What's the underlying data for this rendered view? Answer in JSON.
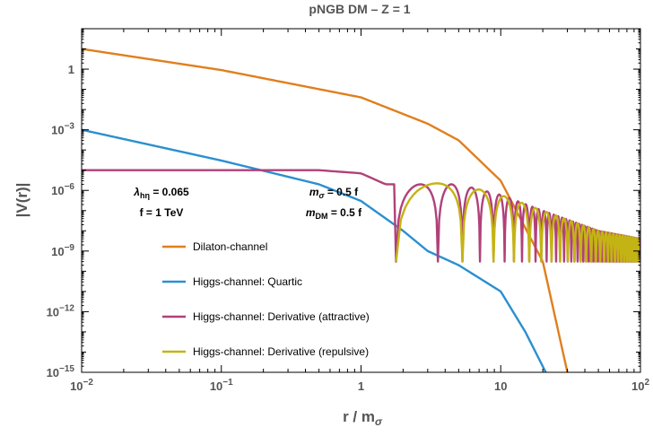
{
  "chart_data": {
    "type": "line",
    "title": "pNGB DM   –  Z = 1",
    "xscale": "log",
    "yscale": "log",
    "xlim": [
      0.01,
      100
    ],
    "ylim": [
      1e-15,
      100
    ],
    "xlabel": {
      "main": "r / m",
      "sub": "σ"
    },
    "ylabel": "|V(r)|",
    "xticks": [
      {
        "value": 0.01,
        "base": "10",
        "exp": "−2"
      },
      {
        "value": 0.1,
        "base": "10",
        "exp": "−1"
      },
      {
        "value": 1,
        "base": "1",
        "exp": ""
      },
      {
        "value": 10,
        "base": "10",
        "exp": ""
      },
      {
        "value": 100,
        "base": "10",
        "exp": "2"
      }
    ],
    "yticks": [
      {
        "value": 1e-15,
        "base": "10",
        "exp": "−15"
      },
      {
        "value": 1e-12,
        "base": "10",
        "exp": "−12"
      },
      {
        "value": 1e-09,
        "base": "10",
        "exp": "−9"
      },
      {
        "value": 1e-06,
        "base": "10",
        "exp": "−6"
      },
      {
        "value": 0.001,
        "base": "10",
        "exp": "−3"
      },
      {
        "value": 1,
        "base": "1",
        "exp": ""
      }
    ],
    "annotations": {
      "coupling": {
        "symbol": "λ",
        "sub": "hη",
        "rest": " = 0.065"
      },
      "scale": "f = 1 TeV",
      "msigma": {
        "symbol": "m",
        "sub": "σ",
        "rest": " = 0.5 f"
      },
      "mdm": {
        "symbol": "m",
        "sub": "DM",
        "rest": " = 0.5 f"
      }
    },
    "series": [
      {
        "name": "Dilaton-channel",
        "color": "#e07f1e",
        "points": [
          [
            0.01,
            10
          ],
          [
            0.1,
            0.9
          ],
          [
            1,
            0.04
          ],
          [
            3,
            0.002
          ],
          [
            5,
            0.0003
          ],
          [
            10,
            3e-06
          ],
          [
            20,
            3e-10
          ],
          [
            30,
            1e-15
          ]
        ]
      },
      {
        "name": "Higgs-channel: Quartic",
        "color": "#2b8fd0",
        "points": [
          [
            0.01,
            0.001
          ],
          [
            0.1,
            3e-05
          ],
          [
            0.5,
            2e-06
          ],
          [
            1,
            3e-07
          ],
          [
            2,
            1e-08
          ],
          [
            3,
            1e-09
          ],
          [
            5,
            2e-10
          ],
          [
            10,
            1e-11
          ],
          [
            15,
            1e-13
          ],
          [
            21,
            1e-15
          ]
        ]
      },
      {
        "name": "Higgs-channel: Derivative (attractive)",
        "color": "#b0417a",
        "envelope": [
          [
            0.01,
            1e-05
          ],
          [
            0.5,
            1e-05
          ],
          [
            1,
            7e-06
          ],
          [
            1.5,
            2e-06
          ],
          [
            2,
            2e-06
          ],
          [
            5,
            2e-06
          ],
          [
            10,
            6e-07
          ],
          [
            20,
            1e-07
          ],
          [
            50,
            1e-08
          ],
          [
            100,
            4e-09
          ]
        ],
        "nodes": [
          1.78,
          3.55,
          5.32,
          7.1,
          8.88,
          10.66,
          12.43,
          14.2,
          16.0,
          17.75,
          19.5,
          21.3,
          23.1,
          24.9,
          26.6,
          28.4,
          30.2,
          32.0,
          33.7,
          35.5,
          37.3,
          39.0,
          40.8,
          42.6,
          44.4,
          46.1,
          47.9,
          49.7,
          51.5,
          53.2,
          55.0,
          56.8,
          58.6,
          60.3,
          62.1,
          63.9,
          65.7,
          67.4,
          69.2,
          71.0,
          72.8,
          74.5,
          76.3,
          78.1,
          79.9,
          81.6,
          83.4,
          85.2,
          87.0,
          88.8,
          90.5,
          92.3,
          94.1,
          95.9,
          97.6,
          99.4
        ],
        "node_floor": 3e-10
      },
      {
        "name": "Higgs-channel: Derivative (repulsive)",
        "color": "#c4b314",
        "start": 1.78,
        "envelope": [
          [
            1.78,
            2e-06
          ],
          [
            2.5,
            2.5e-06
          ],
          [
            5,
            2e-06
          ],
          [
            10,
            6e-07
          ],
          [
            20,
            1e-07
          ],
          [
            50,
            1e-08
          ],
          [
            100,
            4e-09
          ]
        ],
        "nodes": [
          1.78,
          3.55,
          5.32,
          7.1,
          8.88,
          10.66,
          12.43,
          14.2,
          16.0,
          17.75,
          19.5,
          21.3,
          23.1,
          24.9,
          26.6,
          28.4,
          30.2,
          32.0,
          33.7,
          35.5,
          37.3,
          39.0,
          40.8,
          42.6,
          44.4,
          46.1,
          47.9,
          49.7,
          51.5,
          53.2,
          55.0,
          56.8,
          58.6,
          60.3,
          62.1,
          63.9,
          65.7,
          67.4,
          69.2,
          71.0,
          72.8,
          74.5,
          76.3,
          78.1,
          79.9,
          81.6,
          83.4,
          85.2,
          87.0,
          88.8,
          90.5,
          92.3,
          94.1,
          95.9,
          97.6,
          99.4
        ],
        "node_floor": 3e-10
      }
    ],
    "grid": false,
    "legend": "lower-left inside"
  }
}
